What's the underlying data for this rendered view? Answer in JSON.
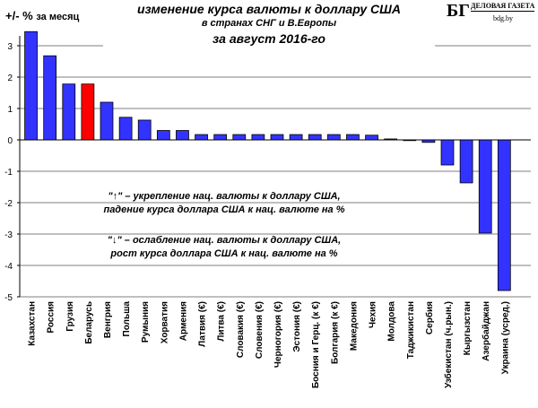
{
  "chart_data": {
    "type": "bar",
    "title": "изменение курса валюты к доллару США",
    "subtitle": "в странах СНГ и В.Европы",
    "period": "за август 2016-го",
    "ylabel": "+/- %",
    "ylabel_unit": "за месяц",
    "ylim": [
      -5,
      3.5
    ],
    "yticks": [
      3,
      2,
      1,
      0,
      -1,
      -2,
      -3,
      -4,
      -5
    ],
    "grid": true,
    "categories": [
      "Казахстан",
      "Россия",
      "Грузия",
      "Беларусь",
      "Венгрия",
      "Польша",
      "Румыния",
      "Хорватия",
      "Армения",
      "Латвия (€)",
      "Литва (€)",
      "Словакия (€)",
      "Словения (€)",
      "Черногория (€)",
      "Эстония (€)",
      "Босния и Герц. (к €)",
      "Болгария (к €)",
      "Македония",
      "Чехия",
      "Молдова",
      "Таджикистан",
      "Сербия",
      "Узбекистан (ч.рын.)",
      "Кыргызстан",
      "Азербайджан",
      "Украина (усред.)"
    ],
    "values": [
      3.45,
      2.68,
      1.78,
      1.78,
      1.2,
      0.72,
      0.63,
      0.3,
      0.3,
      0.17,
      0.17,
      0.17,
      0.17,
      0.17,
      0.17,
      0.17,
      0.17,
      0.17,
      0.15,
      0.03,
      -0.02,
      -0.08,
      -0.8,
      -1.37,
      -2.97,
      -4.8
    ],
    "colors": {
      "default": "#3333ff",
      "highlight": "#ff0000",
      "highlight_category": "Беларусь"
    },
    "annotations": [
      "\"↑\" – укрепление нац. валюты к доллару США,",
      "падение курса доллара США к нац. валюте на %",
      "\"↓\" – ослабление нац. валюты к доллару США,",
      "рост курса доллара США к нац. валюте на %"
    ]
  },
  "logo": {
    "mark": "БГ",
    "name": "ДЕЛОВАЯ ГАЗЕТА",
    "site": "bdg.by"
  }
}
